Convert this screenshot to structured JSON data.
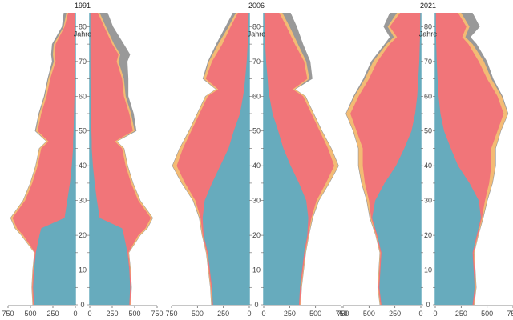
{
  "chart_data": [
    {
      "type": "area",
      "title": "1991",
      "age_unit": "Jahre",
      "xlim": [
        0,
        750
      ],
      "x_ticks": [
        750,
        500,
        250,
        0
      ],
      "age_ticks": [
        0,
        10,
        20,
        30,
        40,
        50,
        60,
        70,
        80
      ],
      "ages": [
        0,
        5,
        10,
        15,
        20,
        22,
        25,
        30,
        35,
        40,
        45,
        47,
        50,
        55,
        60,
        65,
        70,
        72,
        75,
        80,
        84
      ],
      "left": {
        "base": [
          460,
          470,
          460,
          440,
          400,
          380,
          120,
          90,
          60,
          40,
          25,
          25,
          20,
          15,
          10,
          8,
          5,
          5,
          5,
          5,
          3
        ],
        "mid": [
          470,
          480,
          470,
          450,
          580,
          650,
          700,
          560,
          480,
          420,
          380,
          300,
          420,
          380,
          320,
          280,
          220,
          230,
          220,
          120,
          80
        ],
        "outer": [
          475,
          485,
          475,
          455,
          600,
          670,
          720,
          580,
          500,
          440,
          400,
          320,
          440,
          400,
          340,
          300,
          240,
          250,
          240,
          130,
          100
        ],
        "gray": [
          478,
          488,
          478,
          458,
          605,
          675,
          725,
          585,
          505,
          445,
          405,
          325,
          450,
          410,
          350,
          310,
          260,
          270,
          260,
          150,
          130
        ]
      },
      "right": {
        "base": [
          440,
          450,
          440,
          420,
          380,
          360,
          110,
          80,
          55,
          35,
          22,
          22,
          18,
          14,
          9,
          7,
          5,
          5,
          4,
          4,
          3
        ],
        "mid": [
          450,
          460,
          450,
          430,
          540,
          620,
          680,
          540,
          460,
          400,
          360,
          280,
          480,
          440,
          380,
          360,
          300,
          320,
          250,
          160,
          90
        ],
        "outer": [
          455,
          465,
          455,
          435,
          560,
          640,
          700,
          560,
          480,
          420,
          380,
          300,
          500,
          460,
          400,
          380,
          320,
          340,
          270,
          180,
          110
        ],
        "gray": [
          458,
          468,
          458,
          438,
          565,
          645,
          705,
          565,
          485,
          425,
          385,
          305,
          520,
          490,
          430,
          430,
          420,
          450,
          380,
          260,
          200
        ]
      }
    },
    {
      "type": "area",
      "title": "2006",
      "age_unit": "Jahre",
      "xlim": [
        0,
        750
      ],
      "x_ticks": [
        750,
        500,
        250,
        0
      ],
      "age_ticks": [
        0,
        10,
        20,
        30,
        40,
        50,
        60,
        70,
        80
      ],
      "ages": [
        0,
        5,
        10,
        15,
        20,
        25,
        30,
        35,
        40,
        45,
        50,
        55,
        60,
        62,
        65,
        70,
        75,
        80,
        84
      ],
      "left": {
        "base": [
          350,
          360,
          380,
          400,
          440,
          450,
          430,
          360,
          280,
          200,
          150,
          90,
          60,
          50,
          40,
          25,
          15,
          8,
          4
        ],
        "mid": [
          360,
          370,
          390,
          410,
          450,
          470,
          520,
          620,
          700,
          640,
          560,
          480,
          400,
          300,
          420,
          360,
          260,
          180,
          110
        ],
        "outer": [
          365,
          375,
          395,
          415,
          455,
          480,
          540,
          650,
          740,
          670,
          580,
          500,
          420,
          320,
          440,
          390,
          300,
          200,
          130
        ],
        "gray": [
          368,
          378,
          398,
          418,
          458,
          485,
          545,
          655,
          745,
          675,
          585,
          505,
          425,
          325,
          450,
          400,
          320,
          230,
          160
        ]
      },
      "right": {
        "base": [
          340,
          350,
          370,
          390,
          420,
          430,
          410,
          340,
          260,
          190,
          140,
          85,
          55,
          45,
          38,
          23,
          14,
          7,
          3
        ],
        "mid": [
          350,
          360,
          380,
          400,
          430,
          460,
          510,
          600,
          680,
          620,
          540,
          460,
          380,
          280,
          420,
          390,
          300,
          220,
          150
        ],
        "outer": [
          355,
          365,
          385,
          405,
          435,
          470,
          530,
          630,
          720,
          650,
          560,
          480,
          400,
          300,
          440,
          410,
          330,
          250,
          180
        ],
        "gray": [
          358,
          368,
          388,
          408,
          438,
          475,
          535,
          635,
          725,
          655,
          565,
          485,
          405,
          305,
          470,
          450,
          380,
          320,
          260
        ]
      }
    },
    {
      "type": "area",
      "title": "2021",
      "age_unit": "Jahre",
      "xlim": [
        0,
        750
      ],
      "x_ticks": [
        750,
        500,
        250,
        0
      ],
      "age_ticks": [
        0,
        10,
        20,
        30,
        40,
        50,
        60,
        70,
        80
      ],
      "ages": [
        0,
        5,
        10,
        15,
        20,
        25,
        30,
        35,
        40,
        45,
        50,
        55,
        60,
        65,
        70,
        75,
        77,
        80,
        84
      ],
      "left": {
        "base": [
          380,
          400,
          390,
          380,
          420,
          470,
          440,
          350,
          240,
          160,
          90,
          55,
          35,
          25,
          15,
          10,
          8,
          6,
          4
        ],
        "mid": [
          390,
          410,
          400,
          390,
          430,
          480,
          500,
          540,
          560,
          560,
          620,
          680,
          600,
          500,
          420,
          300,
          230,
          300,
          200
        ],
        "outer": [
          395,
          415,
          405,
          395,
          435,
          490,
          520,
          570,
          600,
          600,
          650,
          720,
          640,
          540,
          460,
          330,
          260,
          320,
          230
        ],
        "gray": [
          398,
          418,
          408,
          398,
          438,
          495,
          525,
          575,
          605,
          605,
          655,
          725,
          650,
          555,
          480,
          350,
          300,
          360,
          300
        ]
      },
      "right": {
        "base": [
          360,
          380,
          370,
          360,
          400,
          440,
          420,
          330,
          220,
          150,
          85,
          50,
          32,
          22,
          14,
          9,
          7,
          5,
          3
        ],
        "mid": [
          370,
          390,
          380,
          370,
          410,
          450,
          480,
          520,
          540,
          540,
          600,
          660,
          600,
          500,
          420,
          320,
          260,
          300,
          220
        ],
        "outer": [
          375,
          395,
          385,
          375,
          415,
          460,
          500,
          550,
          580,
          580,
          630,
          700,
          640,
          540,
          470,
          360,
          290,
          330,
          250
        ],
        "gray": [
          378,
          398,
          388,
          378,
          418,
          465,
          505,
          555,
          585,
          585,
          635,
          705,
          650,
          560,
          500,
          400,
          340,
          430,
          360
        ]
      }
    }
  ],
  "colors": {
    "base": "#67abbd",
    "mid": "#f17579",
    "outer": "#f3bb74",
    "gray": "#999999",
    "axis": "#67abbd",
    "tick": "#666666"
  }
}
